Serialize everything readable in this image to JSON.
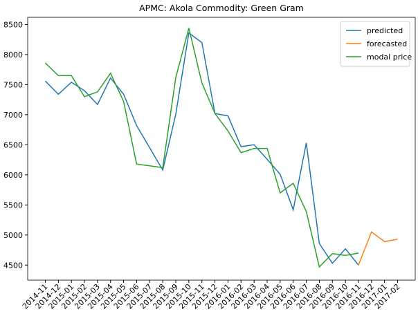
{
  "chart_data": {
    "type": "line",
    "title": "APMC: Akola  Commodity: Green Gram",
    "categories": [
      "2014-11",
      "2014-12",
      "2015-01",
      "2015-02",
      "2015-03",
      "2015-04",
      "2015-05",
      "2015-06",
      "2015-07",
      "2015-08",
      "2015-09",
      "2015-10",
      "2015-11",
      "2015-12",
      "2016-01",
      "2016-02",
      "2016-03",
      "2016-04",
      "2016-05",
      "2016-06",
      "2016-07",
      "2016-08",
      "2016-09",
      "2016-10",
      "2016-11",
      "2016-12",
      "2017-01",
      "2017-02"
    ],
    "series": [
      {
        "name": "predicted",
        "color": "#1f77b4",
        "values": [
          7560,
          7340,
          7540,
          7400,
          7170,
          7610,
          7340,
          6820,
          6450,
          6080,
          7010,
          8360,
          8200,
          7020,
          6980,
          6470,
          6500,
          6260,
          6010,
          5420,
          6530,
          4860,
          4530,
          4770,
          4500,
          null,
          null,
          null
        ]
      },
      {
        "name": "forecasted",
        "color": "#ff7f0e",
        "values": [
          null,
          null,
          null,
          null,
          null,
          null,
          null,
          null,
          null,
          null,
          null,
          null,
          null,
          null,
          null,
          null,
          null,
          null,
          null,
          null,
          null,
          null,
          null,
          null,
          4500,
          5050,
          4890,
          4930
        ]
      },
      {
        "name": "modal price",
        "color": "#2ca02c",
        "values": [
          7860,
          7650,
          7650,
          7300,
          7380,
          7690,
          7220,
          6180,
          6150,
          6120,
          7620,
          8440,
          7530,
          7020,
          6730,
          6370,
          6440,
          6440,
          5700,
          5860,
          5390,
          4470,
          4690,
          4660,
          4700,
          null,
          null,
          null
        ]
      }
    ],
    "ylim": [
      4250,
      8620
    ],
    "yticks": [
      4500,
      5000,
      5500,
      6000,
      6500,
      7000,
      7500,
      8000,
      8500
    ],
    "legend": "upper right"
  }
}
